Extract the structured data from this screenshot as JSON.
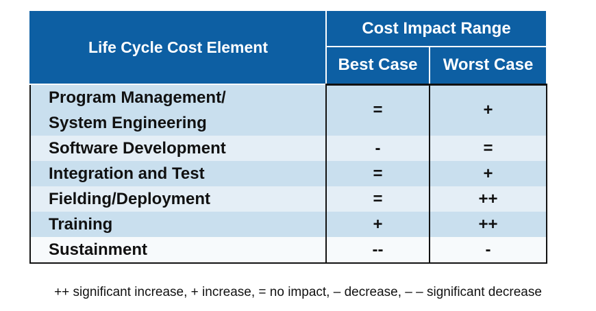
{
  "table": {
    "header": {
      "element": "Life Cycle Cost Element",
      "group": "Cost Impact Range",
      "best": "Best Case",
      "worst": "Worst Case"
    },
    "rows": [
      [
        "Program Management/\nSystem Engineering",
        "=",
        "+"
      ],
      [
        "Software Development",
        "-",
        "="
      ],
      [
        "Integration and Test",
        "=",
        "+"
      ],
      [
        "Fielding/Deployment",
        "=",
        "++"
      ],
      [
        "Training",
        "+",
        "++"
      ],
      [
        "Sustainment",
        "--",
        "-"
      ]
    ]
  },
  "footnote": "++ significant increase, + increase, = no impact, – decrease, – – significant decrease"
}
